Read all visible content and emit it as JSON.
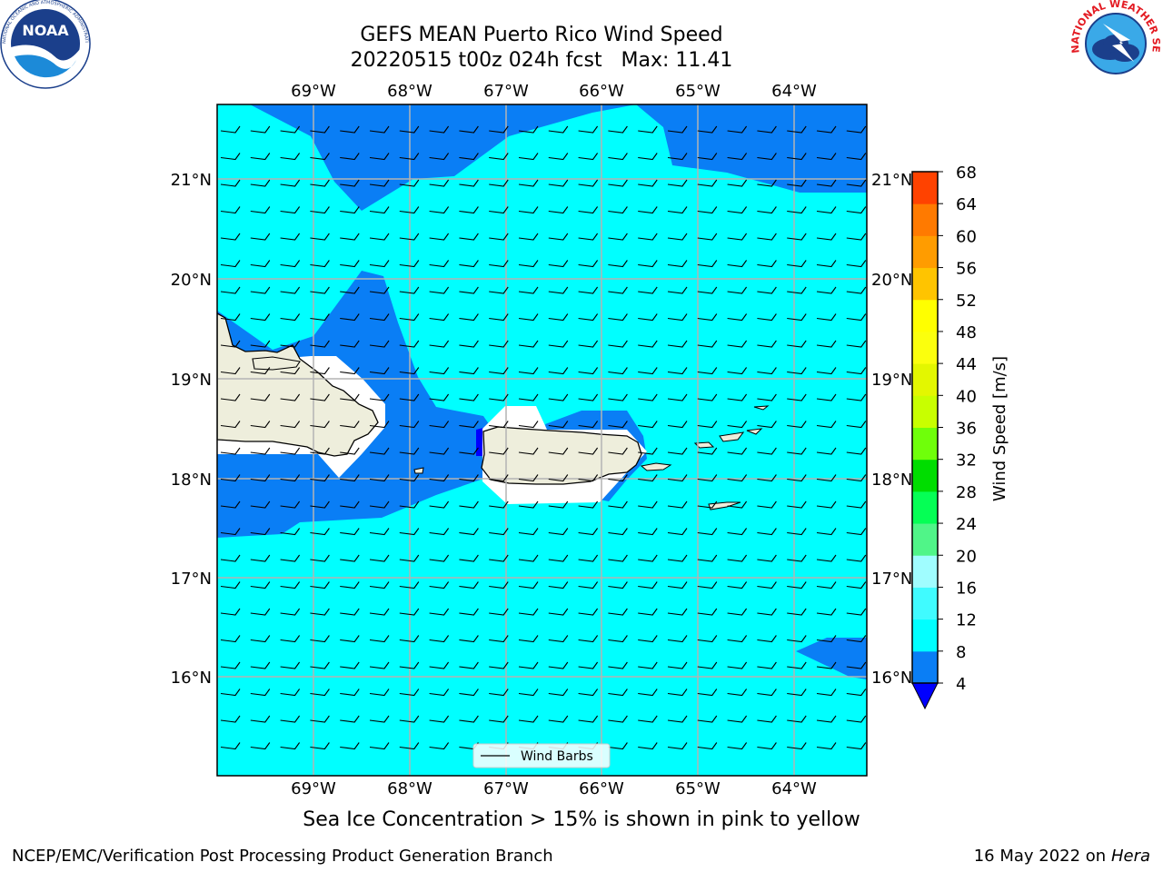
{
  "title": {
    "line1": "GEFS MEAN Puerto Rico Wind Speed",
    "line2": "20220515 t00z 024h fcst   Max: 11.41"
  },
  "map": {
    "lon_labels": [
      "69°W",
      "68°W",
      "67°W",
      "66°W",
      "65°W",
      "64°W"
    ],
    "lat_labels": [
      "21°N",
      "20°N",
      "19°N",
      "18°N",
      "17°N",
      "16°N"
    ],
    "legend_label": "Wind Barbs",
    "colors": {
      "land": "#eeeedc",
      "band_4_8": "#0a7ef5",
      "band_8_12": "#00ffff",
      "below_4": "#0000ff",
      "grid": "#b3b3b3"
    }
  },
  "colorbar": {
    "label": "Wind Speed [m/s]",
    "ticks": [
      "4",
      "8",
      "12",
      "16",
      "20",
      "24",
      "28",
      "32",
      "36",
      "40",
      "44",
      "48",
      "52",
      "56",
      "60",
      "64",
      "68"
    ],
    "colors": [
      "#0a7ef5",
      "#00ffff",
      "#40fbff",
      "#a0fdff",
      "#50f588",
      "#05ff55",
      "#00dd00",
      "#6fff0a",
      "#c8ff00",
      "#e3f700",
      "#fbff0d",
      "#ffff00",
      "#ffc400",
      "#ff9c00",
      "#ff7a00",
      "#ff4200",
      "#ff2800",
      "#ff0000"
    ],
    "extend_color": "#0000ff"
  },
  "footer": {
    "note": "Sea Ice Concentration > 15% is shown in pink to yellow",
    "left": "NCEP/EMC/Verification Post Processing Product Generation Branch",
    "right_prefix": "16 May 2022 on",
    "right_host": "Hera"
  },
  "logos": {
    "noaa_text": "NOAA",
    "noaa_ring_text": "NATIONAL OCEANIC AND ATMOSPHERIC ADMINISTRATION",
    "nws_ring_text": "NATIONAL WEATHER SERVICE"
  }
}
